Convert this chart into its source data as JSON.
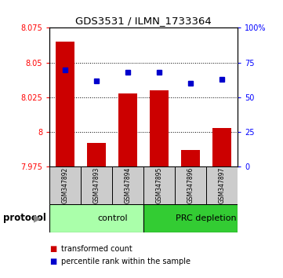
{
  "title": "GDS3531 / ILMN_1733364",
  "samples": [
    "GSM347892",
    "GSM347893",
    "GSM347894",
    "GSM347895",
    "GSM347896",
    "GSM347897"
  ],
  "red_values": [
    8.065,
    7.992,
    8.028,
    8.03,
    7.987,
    8.003
  ],
  "blue_values": [
    70,
    62,
    68,
    68,
    60,
    63
  ],
  "ylim_left": [
    7.975,
    8.075
  ],
  "ylim_right": [
    0,
    100
  ],
  "yticks_left": [
    7.975,
    8.0,
    8.025,
    8.05,
    8.075
  ],
  "ytick_labels_left": [
    "7.975",
    "8",
    "8.025",
    "8.05",
    "8.075"
  ],
  "yticks_right": [
    0,
    25,
    50,
    75,
    100
  ],
  "ytick_labels_right": [
    "0",
    "25",
    "50",
    "75",
    "100%"
  ],
  "dotted_lines": [
    8.05,
    8.025,
    8.0
  ],
  "bar_color": "#cc0000",
  "dot_color": "#0000cc",
  "bar_width": 0.6,
  "plot_bg_color": "#ffffff",
  "sample_box_color": "#cccccc",
  "group_light_color": "#aaffaa",
  "group_dark_color": "#33cc33",
  "group_configs": [
    {
      "start": 0,
      "end": 3,
      "label": "control",
      "color": "#aaffaa"
    },
    {
      "start": 3,
      "end": 6,
      "label": "PRC depletion",
      "color": "#33cc33"
    }
  ]
}
